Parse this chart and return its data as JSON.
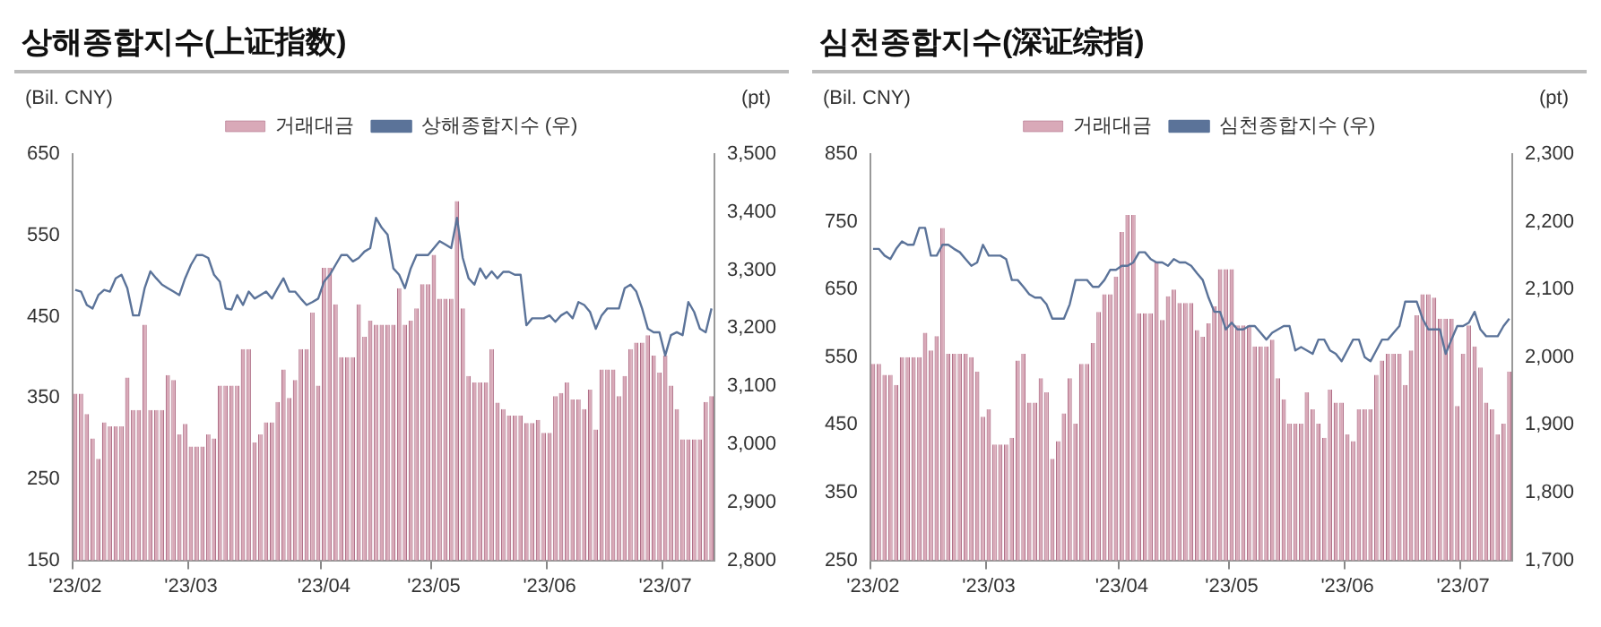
{
  "chart_data": [
    {
      "type": "bar",
      "title": "상해종합지수(上证指数)",
      "ylabel": "(Bil. CNY)",
      "y2label": "(pt)",
      "legend": "top",
      "grid": false,
      "categories": [
        "'23/02",
        null,
        null,
        null,
        null,
        null,
        null,
        null,
        null,
        null,
        null,
        null,
        null,
        null,
        null,
        null,
        null,
        null,
        null,
        null,
        "'23/03",
        null,
        null,
        null,
        null,
        null,
        null,
        null,
        null,
        null,
        null,
        null,
        null,
        null,
        null,
        null,
        null,
        null,
        null,
        null,
        null,
        null,
        null,
        "'23/04",
        null,
        null,
        null,
        null,
        null,
        null,
        null,
        null,
        null,
        null,
        null,
        null,
        null,
        null,
        null,
        null,
        null,
        null,
        "'23/05",
        null,
        null,
        null,
        null,
        null,
        null,
        null,
        null,
        null,
        null,
        null,
        null,
        null,
        null,
        null,
        null,
        null,
        null,
        null,
        "'23/06",
        null,
        null,
        null,
        null,
        null,
        null,
        null,
        null,
        null,
        null,
        null,
        null,
        null,
        null,
        null,
        null,
        null,
        null,
        null,
        "'23/07",
        null,
        null,
        null,
        null,
        null,
        null,
        null,
        null
      ],
      "series": [
        {
          "name": "거래대금",
          "color": "#d9a9b8",
          "values": [
            355,
            355,
            330,
            300,
            275,
            320,
            315,
            315,
            315,
            375,
            335,
            335,
            440,
            335,
            335,
            335,
            378,
            372,
            305,
            318,
            290,
            290,
            290,
            305,
            300,
            365,
            365,
            365,
            365,
            410,
            410,
            295,
            305,
            320,
            320,
            345,
            385,
            350,
            372,
            410,
            410,
            455,
            365,
            510,
            510,
            465,
            400,
            400,
            400,
            465,
            425,
            445,
            440,
            440,
            440,
            440,
            485,
            440,
            445,
            460,
            490,
            490,
            526,
            472,
            472,
            472,
            592,
            460,
            377,
            369,
            369,
            369,
            410,
            344,
            336,
            328,
            328,
            328,
            319,
            319,
            323,
            307,
            307,
            352,
            356,
            369,
            348,
            348,
            336,
            360,
            311,
            385,
            385,
            385,
            352,
            377,
            410,
            418,
            418,
            427,
            402,
            381,
            402,
            365,
            336,
            299,
            299,
            299,
            299,
            345,
            352
          ]
        },
        {
          "name": "상해종합지수 (우)",
          "type": "line",
          "axis": "y2",
          "color": "#5b7399",
          "values": [
            3266,
            3263,
            3240,
            3234,
            3257,
            3266,
            3263,
            3286,
            3292,
            3269,
            3222,
            3222,
            3269,
            3298,
            3286,
            3275,
            3269,
            3263,
            3257,
            3286,
            3309,
            3326,
            3326,
            3321,
            3292,
            3280,
            3234,
            3232,
            3257,
            3240,
            3263,
            3251,
            3257,
            3263,
            3251,
            3269,
            3286,
            3263,
            3263,
            3251,
            3240,
            3245,
            3251,
            3280,
            3292,
            3309,
            3326,
            3326,
            3315,
            3321,
            3332,
            3338,
            3390,
            3373,
            3361,
            3303,
            3292,
            3269,
            3303,
            3326,
            3326,
            3326,
            3338,
            3350,
            3344,
            3338,
            3390,
            3321,
            3286,
            3275,
            3303,
            3286,
            3298,
            3286,
            3297,
            3297,
            3292,
            3292,
            3205,
            3217,
            3217,
            3217,
            3222,
            3211,
            3222,
            3228,
            3217,
            3245,
            3240,
            3228,
            3199,
            3222,
            3234,
            3234,
            3234,
            3269,
            3275,
            3263,
            3234,
            3199,
            3193,
            3193,
            3153,
            3188,
            3193,
            3188,
            3245,
            3228,
            3199,
            3193,
            3234
          ]
        }
      ],
      "ylim": [
        150,
        650
      ],
      "yticks": [
        150,
        250,
        350,
        450,
        550,
        650
      ],
      "y2lim": [
        2800,
        3500
      ],
      "y2ticks": [
        {
          "value": 2800,
          "label": "2,800"
        },
        {
          "value": 2900,
          "label": "2,900"
        },
        {
          "value": 3000,
          "label": "3,000"
        },
        {
          "value": 3100,
          "label": "3,100"
        },
        {
          "value": 3200,
          "label": "3,200"
        },
        {
          "value": 3300,
          "label": "3,300"
        },
        {
          "value": 3400,
          "label": "3,400"
        },
        {
          "value": 3500,
          "label": "3,500"
        }
      ]
    },
    {
      "type": "bar",
      "title": "심천종합지수(深证综指)",
      "ylabel": "(Bil. CNY)",
      "y2label": "(pt)",
      "legend": "top",
      "grid": false,
      "categories": [
        "'23/02",
        null,
        null,
        null,
        null,
        null,
        null,
        null,
        null,
        null,
        null,
        null,
        null,
        null,
        null,
        null,
        null,
        null,
        null,
        null,
        "'23/03",
        null,
        null,
        null,
        null,
        null,
        null,
        null,
        null,
        null,
        null,
        null,
        null,
        null,
        null,
        null,
        null,
        null,
        null,
        null,
        null,
        null,
        null,
        "'23/04",
        null,
        null,
        null,
        null,
        null,
        null,
        null,
        null,
        null,
        null,
        null,
        null,
        null,
        null,
        null,
        null,
        null,
        null,
        "'23/05",
        null,
        null,
        null,
        null,
        null,
        null,
        null,
        null,
        null,
        null,
        null,
        null,
        null,
        null,
        null,
        null,
        null,
        null,
        null,
        "'23/06",
        null,
        null,
        null,
        null,
        null,
        null,
        null,
        null,
        null,
        null,
        null,
        null,
        null,
        null,
        null,
        null,
        null,
        null,
        null,
        "'23/07",
        null,
        null,
        null,
        null,
        null,
        null,
        null,
        null
      ],
      "series": [
        {
          "name": "거래대금",
          "color": "#d9a9b8",
          "values": [
            540,
            540,
            524,
            524,
            509,
            550,
            550,
            550,
            550,
            586,
            560,
            581,
            741,
            555,
            555,
            555,
            555,
            550,
            529,
            462,
            473,
            421,
            421,
            421,
            431,
            545,
            555,
            483,
            483,
            519,
            498,
            400,
            426,
            467,
            519,
            452,
            540,
            540,
            571,
            617,
            643,
            643,
            669,
            735,
            760,
            760,
            615,
            615,
            615,
            690,
            605,
            640,
            650,
            630,
            630,
            630,
            590,
            580,
            600,
            625,
            680,
            680,
            680,
            597,
            597,
            597,
            566,
            566,
            566,
            576,
            519,
            488,
            452,
            452,
            452,
            498,
            473,
            452,
            431,
            502,
            483,
            483,
            436,
            426,
            473,
            473,
            473,
            524,
            545,
            555,
            555,
            555,
            509,
            560,
            612,
            643,
            643,
            638,
            607,
            607,
            607,
            478,
            555,
            597,
            566,
            535,
            483,
            473,
            436,
            452,
            529
          ]
        },
        {
          "name": "심천종합지수 (우)",
          "type": "line",
          "axis": "y2",
          "color": "#5b7399",
          "values": [
            2160,
            2160,
            2150,
            2145,
            2160,
            2171,
            2166,
            2166,
            2191,
            2191,
            2150,
            2150,
            2166,
            2166,
            2160,
            2155,
            2145,
            2135,
            2140,
            2166,
            2150,
            2150,
            2150,
            2145,
            2114,
            2114,
            2104,
            2093,
            2088,
            2088,
            2078,
            2057,
            2057,
            2057,
            2078,
            2114,
            2114,
            2114,
            2104,
            2104,
            2114,
            2129,
            2129,
            2135,
            2135,
            2140,
            2155,
            2155,
            2145,
            2140,
            2140,
            2135,
            2145,
            2140,
            2140,
            2135,
            2124,
            2114,
            2088,
            2067,
            2067,
            2041,
            2051,
            2041,
            2041,
            2046,
            2046,
            2036,
            2026,
            2036,
            2041,
            2046,
            2046,
            2010,
            2015,
            2010,
            2005,
            2026,
            2026,
            2010,
            2005,
            1994,
            2010,
            2026,
            2026,
            2000,
            1994,
            2010,
            2026,
            2026,
            2036,
            2046,
            2082,
            2082,
            2082,
            2057,
            2041,
            2041,
            2041,
            2005,
            2026,
            2046,
            2046,
            2051,
            2067,
            2041,
            2031,
            2031,
            2031,
            2046,
            2057
          ]
        }
      ],
      "ylim": [
        250,
        850
      ],
      "yticks": [
        250,
        350,
        450,
        550,
        650,
        750,
        850
      ],
      "y2lim": [
        1700,
        2300
      ],
      "y2ticks": [
        {
          "value": 1700,
          "label": "1,700"
        },
        {
          "value": 1800,
          "label": "1,800"
        },
        {
          "value": 1900,
          "label": "1,900"
        },
        {
          "value": 2000,
          "label": "2,000"
        },
        {
          "value": 2100,
          "label": "2,100"
        },
        {
          "value": 2200,
          "label": "2,200"
        },
        {
          "value": 2300,
          "label": "2,300"
        }
      ]
    }
  ]
}
